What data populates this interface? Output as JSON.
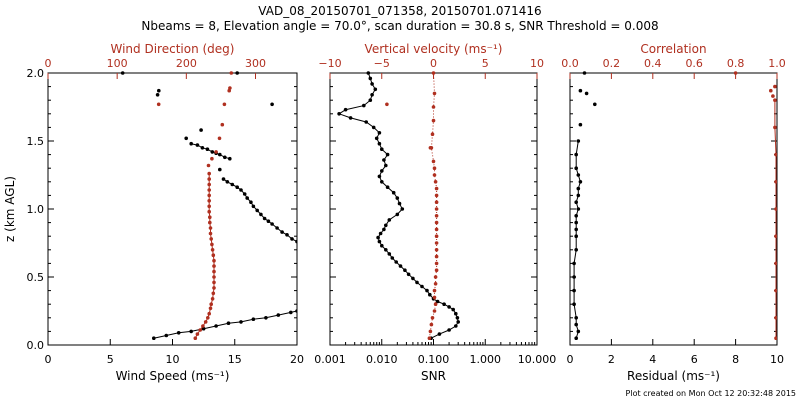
{
  "header": {
    "title_line1": "VAD_08_20150701_071358, 20150701.071416",
    "title_line2": "Nbeams = 8, Elevation angle = 70.0°, scan duration = 30.8 s, SNR Threshold = 0.008"
  },
  "footer": {
    "plot_created": "Plot created on Mon Oct 12 20:32:48 2015"
  },
  "colors": {
    "black_series": "#000000",
    "red_series": "#b03020"
  },
  "chart_data": [
    {
      "type": "line",
      "panel": "wind",
      "ylabel": "z (km AGL)",
      "ylim": [
        0,
        2
      ],
      "yticks": [
        "0.0",
        "0.5",
        "1.0",
        "1.5",
        "2.0"
      ],
      "bottom_axis": {
        "label": "Wind Speed (ms⁻¹)",
        "lim": [
          0,
          20
        ],
        "ticks": [
          "0",
          "5",
          "10",
          "15",
          "20"
        ]
      },
      "top_axis": {
        "label": "Wind Direction (deg)",
        "lim": [
          0,
          360
        ],
        "ticks": [
          "0",
          "100",
          "200",
          "300"
        ]
      },
      "series": [
        {
          "axis": "bottom",
          "color": "black",
          "connected": true,
          "points": [
            [
              8.5,
              0.05
            ],
            [
              9.5,
              0.07
            ],
            [
              10.5,
              0.09
            ],
            [
              11.5,
              0.1
            ],
            [
              12.5,
              0.12
            ],
            [
              13.5,
              0.14
            ],
            [
              14.5,
              0.16
            ],
            [
              15.5,
              0.17
            ],
            [
              16.5,
              0.19
            ],
            [
              17.5,
              0.2
            ],
            [
              18.5,
              0.22
            ],
            [
              19.5,
              0.24
            ],
            [
              20.0,
              0.25
            ]
          ]
        },
        {
          "axis": "bottom",
          "color": "black",
          "connected": true,
          "points": [
            [
              20.0,
              0.76
            ],
            [
              19.6,
              0.78
            ],
            [
              19.2,
              0.81
            ],
            [
              18.8,
              0.83
            ],
            [
              18.4,
              0.86
            ],
            [
              18.0,
              0.89
            ],
            [
              17.7,
              0.91
            ],
            [
              17.4,
              0.93
            ],
            [
              17.1,
              0.96
            ],
            [
              16.8,
              0.99
            ],
            [
              16.5,
              1.02
            ],
            [
              16.3,
              1.05
            ],
            [
              16.0,
              1.08
            ],
            [
              15.8,
              1.11
            ],
            [
              15.5,
              1.14
            ],
            [
              15.2,
              1.16
            ],
            [
              14.8,
              1.18
            ],
            [
              14.4,
              1.2
            ],
            [
              14.1,
              1.22
            ]
          ]
        },
        {
          "axis": "bottom",
          "color": "black",
          "connected": true,
          "points": [
            [
              14.6,
              1.37
            ],
            [
              14.2,
              1.38
            ],
            [
              13.8,
              1.4
            ],
            [
              13.5,
              1.41
            ],
            [
              13.2,
              1.42
            ],
            [
              12.8,
              1.44
            ],
            [
              12.4,
              1.45
            ],
            [
              12.0,
              1.47
            ],
            [
              11.5,
              1.48
            ]
          ]
        },
        {
          "axis": "bottom",
          "color": "black",
          "connected": false,
          "points": [
            [
              13.8,
              1.29
            ],
            [
              11.1,
              1.52
            ],
            [
              12.3,
              1.58
            ],
            [
              18.0,
              1.77
            ],
            [
              8.8,
              1.84
            ],
            [
              8.9,
              1.87
            ],
            [
              6.0,
              2.0
            ],
            [
              15.2,
              2.0
            ]
          ]
        },
        {
          "axis": "top",
          "color": "red",
          "connected": true,
          "points": [
            [
              213,
              0.05
            ],
            [
              216,
              0.08
            ],
            [
              220,
              0.11
            ],
            [
              224,
              0.14
            ],
            [
              228,
              0.17
            ],
            [
              231,
              0.2
            ],
            [
              233,
              0.23
            ],
            [
              235,
              0.27
            ],
            [
              236,
              0.3
            ],
            [
              238,
              0.34
            ],
            [
              239,
              0.38
            ],
            [
              240,
              0.42
            ],
            [
              240,
              0.46
            ],
            [
              240,
              0.5
            ],
            [
              240,
              0.54
            ],
            [
              240,
              0.58
            ],
            [
              240,
              0.62
            ],
            [
              239,
              0.66
            ],
            [
              238,
              0.7
            ],
            [
              237,
              0.74
            ],
            [
              236,
              0.78
            ],
            [
              235,
              0.82
            ],
            [
              235,
              0.86
            ],
            [
              234,
              0.9
            ],
            [
              234,
              0.94
            ],
            [
              233,
              0.98
            ],
            [
              233,
              1.02
            ],
            [
              233,
              1.06
            ],
            [
              233,
              1.1
            ],
            [
              233,
              1.14
            ],
            [
              233,
              1.18
            ],
            [
              233,
              1.22
            ],
            [
              233,
              1.26
            ]
          ]
        },
        {
          "axis": "top",
          "color": "red",
          "connected": false,
          "points": [
            [
              232,
              1.32
            ],
            [
              237,
              1.37
            ],
            [
              243,
              1.42
            ],
            [
              248,
              1.52
            ],
            [
              252,
              1.62
            ],
            [
              255,
              1.77
            ],
            [
              160,
              1.77
            ],
            [
              262,
              1.87
            ],
            [
              263,
              1.89
            ],
            [
              265,
              2.0
            ]
          ]
        }
      ]
    },
    {
      "type": "line",
      "panel": "vertical",
      "ylim": [
        0,
        2
      ],
      "bottom_axis": {
        "label": "SNR",
        "scale": "log",
        "lim": [
          0.001,
          10
        ],
        "ticks": [
          "0.001",
          "0.010",
          "0.100",
          "1.000",
          "10.000"
        ]
      },
      "top_axis": {
        "label": "Vertical velocity (ms⁻¹)",
        "lim": [
          -10,
          10
        ],
        "ticks": [
          "−10",
          "−5",
          "0",
          "5",
          "10"
        ]
      },
      "series": [
        {
          "axis": "bottom",
          "color": "black",
          "connected": true,
          "points": [
            [
              0.09,
              0.05
            ],
            [
              0.13,
              0.08
            ],
            [
              0.2,
              0.11
            ],
            [
              0.27,
              0.14
            ],
            [
              0.3,
              0.17
            ],
            [
              0.29,
              0.2
            ],
            [
              0.27,
              0.23
            ],
            [
              0.24,
              0.26
            ],
            [
              0.2,
              0.28
            ],
            [
              0.16,
              0.3
            ],
            [
              0.12,
              0.32
            ],
            [
              0.1,
              0.34
            ],
            [
              0.085,
              0.37
            ],
            [
              0.075,
              0.4
            ],
            [
              0.06,
              0.43
            ],
            [
              0.048,
              0.46
            ],
            [
              0.04,
              0.49
            ],
            [
              0.033,
              0.52
            ],
            [
              0.028,
              0.55
            ],
            [
              0.023,
              0.58
            ],
            [
              0.019,
              0.61
            ],
            [
              0.016,
              0.64
            ],
            [
              0.014,
              0.67
            ],
            [
              0.012,
              0.7
            ],
            [
              0.01,
              0.73
            ],
            [
              0.009,
              0.76
            ],
            [
              0.0085,
              0.79
            ],
            [
              0.0095,
              0.82
            ],
            [
              0.011,
              0.85
            ],
            [
              0.012,
              0.88
            ],
            [
              0.014,
              0.92
            ],
            [
              0.02,
              0.96
            ],
            [
              0.025,
              1.0
            ],
            [
              0.022,
              1.04
            ],
            [
              0.02,
              1.08
            ],
            [
              0.017,
              1.12
            ],
            [
              0.013,
              1.16
            ],
            [
              0.01,
              1.2
            ],
            [
              0.009,
              1.24
            ],
            [
              0.01,
              1.28
            ],
            [
              0.012,
              1.32
            ],
            [
              0.011,
              1.36
            ],
            [
              0.013,
              1.4
            ],
            [
              0.01,
              1.44
            ],
            [
              0.009,
              1.48
            ],
            [
              0.008,
              1.52
            ],
            [
              0.009,
              1.56
            ],
            [
              0.007,
              1.6
            ],
            [
              0.005,
              1.64
            ],
            [
              0.0025,
              1.67
            ],
            [
              0.0015,
              1.7
            ],
            [
              0.002,
              1.73
            ],
            [
              0.0045,
              1.76
            ],
            [
              0.006,
              1.8
            ],
            [
              0.0065,
              1.84
            ],
            [
              0.0075,
              1.88
            ],
            [
              0.0065,
              1.92
            ],
            [
              0.006,
              1.96
            ],
            [
              0.0055,
              2.0
            ]
          ]
        },
        {
          "axis": "top",
          "color": "red",
          "connected": true,
          "dotted": true,
          "points": [
            [
              -0.4,
              0.05
            ],
            [
              -0.3,
              0.1
            ],
            [
              -0.2,
              0.15
            ],
            [
              -0.1,
              0.2
            ],
            [
              0.1,
              0.25
            ],
            [
              0.2,
              0.3
            ],
            [
              0.1,
              0.35
            ],
            [
              0.1,
              0.4
            ],
            [
              0.2,
              0.45
            ],
            [
              0.2,
              0.5
            ],
            [
              0.3,
              0.55
            ],
            [
              0.3,
              0.6
            ],
            [
              0.3,
              0.65
            ],
            [
              0.3,
              0.7
            ],
            [
              0.3,
              0.75
            ],
            [
              0.3,
              0.8
            ],
            [
              0.3,
              0.85
            ],
            [
              0.3,
              0.9
            ],
            [
              0.3,
              0.95
            ],
            [
              0.3,
              1.0
            ],
            [
              0.3,
              1.05
            ],
            [
              0.3,
              1.1
            ],
            [
              0.3,
              1.15
            ],
            [
              0.2,
              1.2
            ],
            [
              0.1,
              1.25
            ],
            [
              0.1,
              1.3
            ],
            [
              0.0,
              1.35
            ],
            [
              -0.2,
              1.45
            ],
            [
              -0.1,
              1.55
            ],
            [
              0.0,
              1.65
            ],
            [
              0.0,
              1.75
            ],
            [
              0.1,
              1.85
            ],
            [
              0.0,
              2.0
            ]
          ]
        },
        {
          "axis": "top",
          "color": "red",
          "connected": false,
          "points": [
            [
              -4.5,
              1.77
            ],
            [
              -0.3,
              1.45
            ]
          ]
        }
      ]
    },
    {
      "type": "line",
      "panel": "residual",
      "ylim": [
        0,
        2
      ],
      "bottom_axis": {
        "label": "Residual (ms⁻¹)",
        "lim": [
          0,
          10
        ],
        "ticks": [
          "0",
          "2",
          "4",
          "6",
          "8",
          "10"
        ]
      },
      "top_axis": {
        "label": "Correlation",
        "lim": [
          0,
          1
        ],
        "ticks": [
          "0.0",
          "0.2",
          "0.4",
          "0.6",
          "0.8",
          "1.0"
        ]
      },
      "series": [
        {
          "axis": "bottom",
          "color": "black",
          "connected": true,
          "points": [
            [
              0.3,
              0.05
            ],
            [
              0.4,
              0.1
            ],
            [
              0.3,
              0.15
            ],
            [
              0.3,
              0.2
            ],
            [
              0.2,
              0.3
            ],
            [
              0.2,
              0.4
            ],
            [
              0.2,
              0.5
            ],
            [
              0.2,
              0.6
            ],
            [
              0.3,
              0.7
            ],
            [
              0.3,
              0.8
            ],
            [
              0.3,
              0.85
            ],
            [
              0.3,
              0.9
            ],
            [
              0.3,
              0.95
            ],
            [
              0.4,
              1.0
            ],
            [
              0.3,
              1.05
            ],
            [
              0.4,
              1.1
            ],
            [
              0.4,
              1.15
            ],
            [
              0.5,
              1.2
            ],
            [
              0.4,
              1.25
            ],
            [
              0.3,
              1.3
            ],
            [
              0.3,
              1.4
            ],
            [
              0.4,
              1.5
            ]
          ]
        },
        {
          "axis": "bottom",
          "color": "black",
          "connected": false,
          "points": [
            [
              0.5,
              1.62
            ],
            [
              1.2,
              1.77
            ],
            [
              0.8,
              1.85
            ],
            [
              0.5,
              1.87
            ],
            [
              0.7,
              2.0
            ]
          ]
        },
        {
          "axis": "top",
          "color": "red",
          "connected": true,
          "points": [
            [
              0.995,
              0.05
            ],
            [
              0.995,
              0.2
            ],
            [
              0.995,
              0.4
            ],
            [
              0.995,
              0.6
            ],
            [
              0.995,
              0.8
            ],
            [
              0.995,
              1.0
            ],
            [
              0.995,
              1.2
            ],
            [
              0.995,
              1.4
            ],
            [
              0.99,
              1.6
            ],
            [
              0.99,
              1.8
            ]
          ]
        },
        {
          "axis": "top",
          "color": "red",
          "connected": false,
          "points": [
            [
              0.8,
              2.0
            ],
            [
              0.97,
              1.87
            ],
            [
              0.98,
              1.83
            ],
            [
              0.99,
              1.9
            ]
          ]
        }
      ]
    }
  ]
}
